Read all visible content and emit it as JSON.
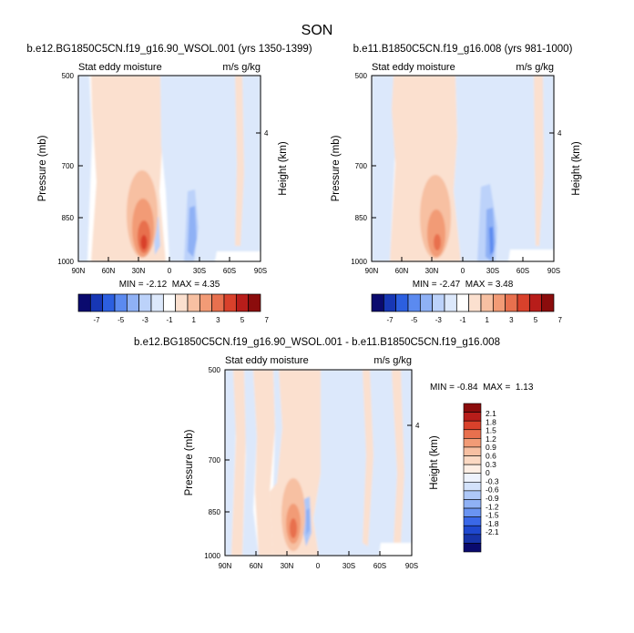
{
  "figure": {
    "title": "SON"
  },
  "colors": {
    "levels": [
      "#0a0a6e",
      "#1737b5",
      "#2c5fe0",
      "#5b8af0",
      "#8fb1f5",
      "#bcd2fa",
      "#dce8fb",
      "#ffffff",
      "#fbe0cf",
      "#f7c0a2",
      "#f29b76",
      "#e8704e",
      "#d9412b",
      "#b81d1a",
      "#8b0c0c"
    ],
    "diff_levels": [
      "#0a0a6e",
      "#1733a8",
      "#1f48cf",
      "#3a68e8",
      "#6a94f2",
      "#8fb1f5",
      "#aec8f8",
      "#d3e2fb",
      "#eef3fd",
      "#fdeee4",
      "#fbd9c3",
      "#f7c0a2",
      "#f29b76",
      "#e8704e",
      "#d9412b",
      "#b81d1a",
      "#8b0c0c"
    ]
  },
  "chart_data": [
    {
      "type": "heatmap",
      "title": "b.e12.BG1850C5CN.f19_g16.90_WSOL.001 (yrs 1350-1399)",
      "left_label": "Stat eddy moisture",
      "right_label": "m/s g/kg",
      "ylabel": "Pressure (mb)",
      "y2label": "Height (km)",
      "x_ticks": [
        "90N",
        "60N",
        "30N",
        "0",
        "30S",
        "60S",
        "90S"
      ],
      "y_ticks": [
        "500",
        "700",
        "850",
        "1000"
      ],
      "y2_ticks": [
        "4"
      ],
      "stats_text": "MIN = -2.12  MAX = 4.35",
      "min": -2.12,
      "max": 4.35
    },
    {
      "type": "heatmap",
      "title": "b.e11.B1850C5CN.f19_g16.008 (yrs 981-1000)",
      "left_label": "Stat eddy moisture",
      "right_label": "m/s g/kg",
      "ylabel": "Pressure (mb)",
      "y2label": "Height (km)",
      "x_ticks": [
        "90N",
        "60N",
        "30N",
        "0",
        "30S",
        "60S",
        "90S"
      ],
      "y_ticks": [
        "500",
        "700",
        "850",
        "1000"
      ],
      "y2_ticks": [
        "4"
      ],
      "stats_text": "MIN = -2.47  MAX = 3.48",
      "min": -2.47,
      "max": 3.48
    },
    {
      "type": "heatmap",
      "title": "b.e12.BG1850C5CN.f19_g16.90_WSOL.001 - b.e11.B1850C5CN.f19_g16.008",
      "left_label": "Stat eddy moisture",
      "right_label": "m/s g/kg",
      "ylabel": "Pressure (mb)",
      "y2label": "Height (km)",
      "x_ticks": [
        "90N",
        "60N",
        "30N",
        "0",
        "30S",
        "60S",
        "90S"
      ],
      "y_ticks": [
        "500",
        "700",
        "850",
        "1000"
      ],
      "y2_ticks": [
        "4"
      ],
      "stats_text": "MIN = -0.84  MAX =  1.13",
      "min": -0.84,
      "max": 1.13
    }
  ],
  "colorbars": {
    "top": {
      "labels": [
        "-7",
        "-5",
        "-3",
        "-1",
        "1",
        "3",
        "5",
        "7"
      ]
    },
    "diff": {
      "labels": [
        "2.1",
        "1.8",
        "1.5",
        "1.2",
        "0.9",
        "0.6",
        "0.3",
        "0",
        "-0.3",
        "-0.6",
        "-0.9",
        "-1.2",
        "-1.5",
        "-1.8",
        "-2.1"
      ]
    }
  }
}
